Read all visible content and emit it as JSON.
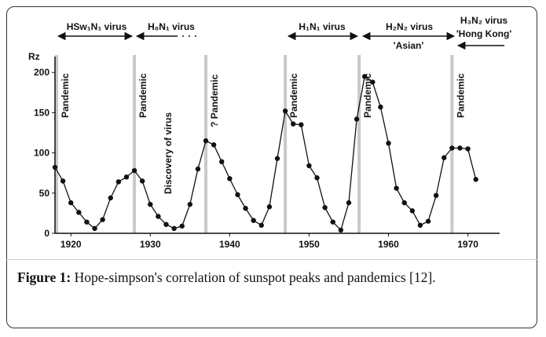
{
  "chart_data": {
    "type": "line",
    "y_label": "Rz",
    "x": [
      1918,
      1919,
      1920,
      1921,
      1922,
      1923,
      1924,
      1925,
      1926,
      1927,
      1928,
      1929,
      1930,
      1931,
      1932,
      1933,
      1934,
      1935,
      1936,
      1937,
      1938,
      1939,
      1940,
      1941,
      1942,
      1943,
      1944,
      1945,
      1946,
      1947,
      1948,
      1949,
      1950,
      1951,
      1952,
      1953,
      1954,
      1955,
      1956,
      1957,
      1958,
      1959,
      1960,
      1961,
      1962,
      1963,
      1964,
      1965,
      1966,
      1967,
      1968,
      1969,
      1970,
      1971
    ],
    "values": [
      82,
      65,
      38,
      26,
      14,
      6,
      17,
      44,
      64,
      70,
      78,
      65,
      36,
      21,
      11,
      6,
      9,
      36,
      80,
      115,
      110,
      89,
      68,
      48,
      31,
      16,
      10,
      33,
      93,
      152,
      136,
      135,
      84,
      69,
      32,
      14,
      4,
      38,
      142,
      195,
      188,
      157,
      112,
      56,
      38,
      28,
      10,
      15,
      47,
      94,
      106,
      106,
      105,
      67
    ],
    "color": "#111111",
    "xlim": [
      1918,
      1974
    ],
    "ylim": [
      0,
      210
    ],
    "xticks": [
      1920,
      1930,
      1940,
      1950,
      1960,
      1970
    ],
    "yticks": [
      0,
      50,
      100,
      150,
      200
    ],
    "pandemics": [
      {
        "x": 1918.2,
        "label": "Pandemic"
      },
      {
        "x": 1928,
        "label": "Pandemic"
      },
      {
        "x": 1937,
        "label": "? Pandemic"
      },
      {
        "x": 1947,
        "label": "Pandemic"
      },
      {
        "x": 1956.3,
        "label": "Pandemic"
      },
      {
        "x": 1968,
        "label": "Pandemic"
      }
    ],
    "annotations": [
      "HSw₁N₁ virus",
      "H₀N₁ virus",
      "Discovery of virus",
      "H₁N₁ virus",
      "H₂N₂ virus",
      "'Asian'",
      "H₃N₂ virus",
      "'Hong Kong'"
    ]
  },
  "caption": {
    "label": "Figure 1:",
    "text": "Hope-simpson's correlation of sunspot peaks and pandemics [12]."
  }
}
